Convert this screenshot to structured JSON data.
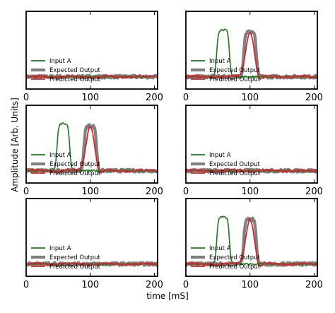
{
  "figure": {
    "xlabel": "time [mS]",
    "ylabel": "Amplitude [Arb. Units]"
  },
  "chart_data": [
    {
      "type": "line",
      "panel": "top-left",
      "x_ticks": [
        0,
        100,
        200
      ],
      "xlim": [
        0,
        205
      ],
      "ylim": [
        -0.3,
        1.6
      ],
      "legend": "lower-left",
      "series": [
        {
          "name": "Input A",
          "color": "#1f7a1f",
          "pulse": null
        },
        {
          "name": "Expected Output",
          "color": "#808080",
          "pulse": null
        },
        {
          "name": "Predicted Output",
          "color": "#d62728",
          "pulse": null
        }
      ]
    },
    {
      "type": "line",
      "panel": "top-right",
      "x_ticks": [
        0,
        100,
        200
      ],
      "xlim": [
        0,
        205
      ],
      "ylim": [
        -0.3,
        1.6
      ],
      "legend": "lower-left",
      "series": [
        {
          "name": "Input A",
          "color": "#1f7a1f",
          "pulse": {
            "start": 48,
            "end": 68,
            "height": 1.15
          }
        },
        {
          "name": "Expected Output",
          "color": "#808080",
          "pulse": {
            "start": 90,
            "end": 110,
            "height": 1.1
          }
        },
        {
          "name": "Predicted Output",
          "color": "#d62728",
          "pulse": {
            "center": 100,
            "width": 10,
            "height": 1.1
          }
        }
      ]
    },
    {
      "type": "line",
      "panel": "middle-left",
      "x_ticks": [
        0,
        100,
        200
      ],
      "xlim": [
        0,
        205
      ],
      "ylim": [
        -0.3,
        1.6
      ],
      "legend": "lower-left",
      "series": [
        {
          "name": "Input A",
          "color": "#1f7a1f",
          "pulse": {
            "start": 48,
            "end": 68,
            "height": 1.15
          }
        },
        {
          "name": "Expected Output",
          "color": "#808080",
          "pulse": {
            "start": 90,
            "end": 110,
            "height": 1.1
          }
        },
        {
          "name": "Predicted Output",
          "color": "#d62728",
          "pulse": {
            "center": 100,
            "width": 10,
            "height": 1.1
          }
        }
      ]
    },
    {
      "type": "line",
      "panel": "middle-right",
      "x_ticks": [
        0,
        100,
        200
      ],
      "xlim": [
        0,
        205
      ],
      "ylim": [
        -0.3,
        1.6
      ],
      "legend": "lower-left",
      "series": [
        {
          "name": "Input A",
          "color": "#1f7a1f",
          "pulse": null
        },
        {
          "name": "Expected Output",
          "color": "#808080",
          "pulse": null
        },
        {
          "name": "Predicted Output",
          "color": "#d62728",
          "pulse": null
        }
      ]
    },
    {
      "type": "line",
      "panel": "bottom-left",
      "x_ticks": [
        0,
        100,
        200
      ],
      "xlim": [
        0,
        205
      ],
      "ylim": [
        -0.3,
        1.6
      ],
      "legend": "lower-left",
      "series": [
        {
          "name": "Input A",
          "color": "#1f7a1f",
          "pulse": null
        },
        {
          "name": "Expected Output",
          "color": "#808080",
          "pulse": null
        },
        {
          "name": "Predicted Output",
          "color": "#d62728",
          "pulse": null
        }
      ]
    },
    {
      "type": "line",
      "panel": "bottom-right",
      "x_ticks": [
        0,
        100,
        200
      ],
      "xlim": [
        0,
        205
      ],
      "ylim": [
        -0.3,
        1.6
      ],
      "legend": "lower-left",
      "series": [
        {
          "name": "Input A",
          "color": "#1f7a1f",
          "pulse": {
            "start": 48,
            "end": 68,
            "height": 1.15
          }
        },
        {
          "name": "Expected Output",
          "color": "#808080",
          "pulse": {
            "start": 90,
            "end": 110,
            "height": 1.1
          }
        },
        {
          "name": "Predicted Output",
          "color": "#d62728",
          "pulse": {
            "center": 100,
            "width": 10,
            "height": 1.1
          }
        }
      ]
    }
  ]
}
